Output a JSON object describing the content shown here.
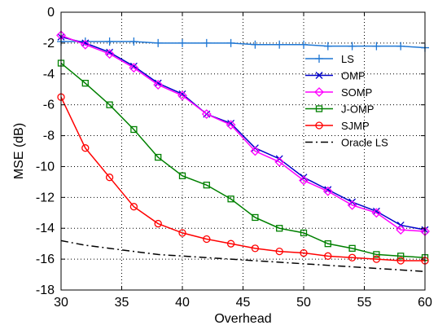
{
  "chart_data": {
    "type": "line",
    "xlabel": "Overhead",
    "ylabel": "MSE (dB)",
    "xlim": [
      30,
      60
    ],
    "ylim": [
      -18,
      0
    ],
    "xticks": [
      30,
      35,
      40,
      45,
      50,
      55,
      60
    ],
    "yticks": [
      0,
      -2,
      -4,
      -6,
      -8,
      -10,
      -12,
      -14,
      -16,
      -18
    ],
    "grid": true,
    "legend_position": "top-right",
    "x": [
      30,
      32,
      34,
      36,
      38,
      40,
      42,
      44,
      46,
      48,
      50,
      52,
      54,
      56,
      58,
      60
    ],
    "series": [
      {
        "name": "LS",
        "color": "#1f77d4",
        "marker": "plus",
        "dash": "solid",
        "values": [
          -1.9,
          -1.9,
          -1.9,
          -1.9,
          -2.0,
          -2.0,
          -2.0,
          -2.0,
          -2.1,
          -2.1,
          -2.1,
          -2.2,
          -2.2,
          -2.2,
          -2.2,
          -2.3
        ]
      },
      {
        "name": "OMP",
        "color": "#0000cc",
        "marker": "x",
        "dash": "solid",
        "values": [
          -1.6,
          -2.0,
          -2.6,
          -3.5,
          -4.6,
          -5.3,
          -6.6,
          -7.2,
          -8.8,
          -9.5,
          -10.7,
          -11.5,
          -12.3,
          -12.9,
          -13.8,
          -14.1
        ]
      },
      {
        "name": "SOMP",
        "color": "#ff00ff",
        "marker": "diamond",
        "dash": "solid",
        "values": [
          -1.5,
          -2.1,
          -2.7,
          -3.6,
          -4.7,
          -5.4,
          -6.6,
          -7.3,
          -9.0,
          -9.7,
          -10.9,
          -11.6,
          -12.5,
          -13.0,
          -14.1,
          -14.2
        ]
      },
      {
        "name": "J-OMP",
        "color": "#008000",
        "marker": "square",
        "dash": "solid",
        "values": [
          -3.3,
          -4.6,
          -6.0,
          -7.6,
          -9.4,
          -10.6,
          -11.2,
          -12.1,
          -13.3,
          -14.0,
          -14.3,
          -15.0,
          -15.3,
          -15.7,
          -15.8,
          -15.9
        ]
      },
      {
        "name": "SJMP",
        "color": "#ff0000",
        "marker": "circle",
        "dash": "solid",
        "values": [
          -5.5,
          -8.8,
          -10.7,
          -12.6,
          -13.7,
          -14.3,
          -14.7,
          -15.0,
          -15.3,
          -15.5,
          -15.6,
          -15.8,
          -15.9,
          -16.0,
          -16.1,
          -16.1
        ]
      },
      {
        "name": "Oracle LS",
        "color": "#000000",
        "marker": "none",
        "dash": "dashdot",
        "values": [
          -14.8,
          -15.1,
          -15.3,
          -15.5,
          -15.7,
          -15.8,
          -15.9,
          -16.0,
          -16.1,
          -16.2,
          -16.3,
          -16.4,
          -16.5,
          -16.6,
          -16.7,
          -16.8
        ]
      }
    ]
  }
}
